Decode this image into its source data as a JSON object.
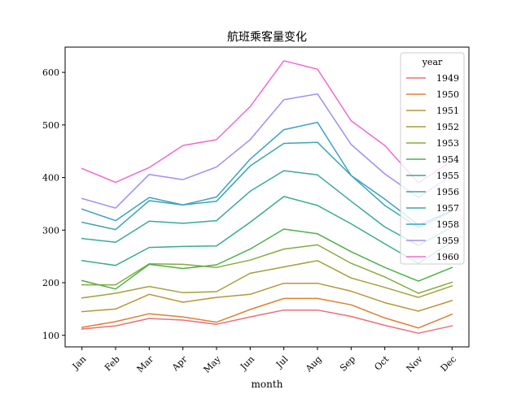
{
  "chart_data": {
    "type": "line",
    "title": "航班乘客量变化",
    "xlabel": "month",
    "ylabel": "",
    "categories": [
      "Jan",
      "Feb",
      "Mar",
      "Apr",
      "May",
      "Jun",
      "Jul",
      "Aug",
      "Sep",
      "Oct",
      "Nov",
      "Dec"
    ],
    "ylim": [
      78,
      648
    ],
    "yticks": [
      100,
      200,
      300,
      400,
      500,
      600
    ],
    "grid": false,
    "legend": {
      "title": "year",
      "placement": "top-right"
    },
    "series": [
      {
        "name": "1949",
        "color": "#e9707a",
        "values": [
          112,
          118,
          132,
          129,
          121,
          135,
          148,
          148,
          136,
          119,
          104,
          118
        ]
      },
      {
        "name": "1950",
        "color": "#dd8032",
        "values": [
          115,
          126,
          141,
          135,
          125,
          149,
          170,
          170,
          158,
          133,
          114,
          140
        ]
      },
      {
        "name": "1951",
        "color": "#b79638",
        "values": [
          145,
          150,
          178,
          163,
          172,
          178,
          199,
          199,
          184,
          162,
          146,
          166
        ]
      },
      {
        "name": "1952",
        "color": "#a1a23a",
        "values": [
          171,
          180,
          193,
          181,
          183,
          218,
          230,
          242,
          209,
          191,
          172,
          194
        ]
      },
      {
        "name": "1953",
        "color": "#83ad3c",
        "values": [
          196,
          196,
          236,
          235,
          229,
          243,
          264,
          272,
          237,
          211,
          180,
          201
        ]
      },
      {
        "name": "1954",
        "color": "#4db14a",
        "values": [
          204,
          188,
          235,
          227,
          234,
          264,
          302,
          293,
          259,
          229,
          203,
          229
        ]
      },
      {
        "name": "1955",
        "color": "#37ae84",
        "values": [
          242,
          233,
          267,
          269,
          270,
          315,
          364,
          347,
          312,
          274,
          237,
          278
        ]
      },
      {
        "name": "1956",
        "color": "#38aa98",
        "values": [
          284,
          277,
          317,
          313,
          318,
          374,
          413,
          405,
          355,
          306,
          271,
          306
        ]
      },
      {
        "name": "1957",
        "color": "#3aa6ad",
        "values": [
          315,
          301,
          356,
          348,
          355,
          422,
          465,
          467,
          404,
          347,
          305,
          336
        ]
      },
      {
        "name": "1958",
        "color": "#3ca0c7",
        "values": [
          340,
          318,
          362,
          348,
          363,
          435,
          491,
          505,
          404,
          359,
          310,
          337
        ]
      },
      {
        "name": "1959",
        "color": "#a08ff0",
        "values": [
          360,
          342,
          406,
          396,
          420,
          472,
          548,
          559,
          463,
          407,
          362,
          405
        ]
      },
      {
        "name": "1960",
        "color": "#f269d2",
        "values": [
          417,
          391,
          419,
          461,
          472,
          535,
          622,
          606,
          508,
          461,
          390,
          432
        ]
      }
    ]
  }
}
